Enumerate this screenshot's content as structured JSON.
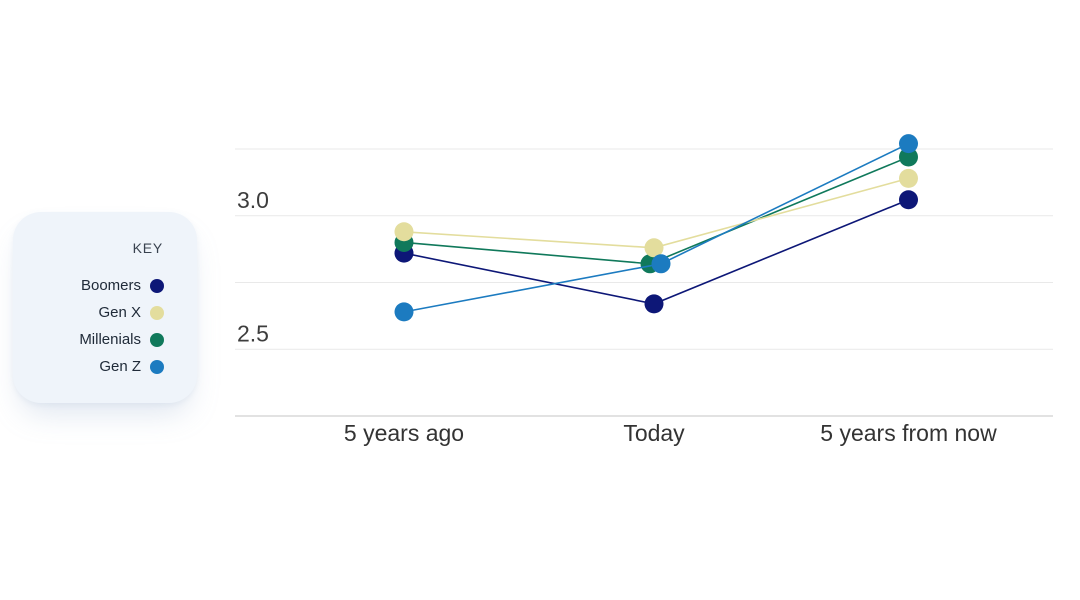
{
  "legend": {
    "title": "KEY",
    "items": [
      "Boomers",
      "Gen X",
      "Millenials",
      "Gen Z"
    ]
  },
  "chart_data": {
    "type": "line",
    "categories": [
      "5 years ago",
      "Today",
      "5 years from now"
    ],
    "series": [
      {
        "name": "Boomers",
        "color": "#0d1777",
        "values": [
          2.86,
          2.67,
          3.06
        ]
      },
      {
        "name": "Gen X",
        "color": "#e3dd9d",
        "values": [
          2.94,
          2.88,
          3.14
        ]
      },
      {
        "name": "Millenials",
        "color": "#10795b",
        "values": [
          2.9,
          2.82,
          3.22
        ]
      },
      {
        "name": "Gen Z",
        "color": "#1c7bc0",
        "values": [
          2.64,
          2.82,
          3.27
        ]
      }
    ],
    "title": "",
    "xlabel": "",
    "ylabel": "",
    "ylim": [
      2.25,
      3.35
    ],
    "gridlines": [
      2.25,
      2.5,
      2.75,
      3.0,
      3.25
    ],
    "yticks_labeled": [
      3.0,
      2.5
    ],
    "grid": true,
    "legend_position": "left",
    "marker": "circle"
  },
  "colors": {
    "background": "#ffffff",
    "gridline": "#e9e9e9",
    "axis_line": "#d8d8d8",
    "tick_text": "#3d3d3d",
    "category_text": "#333333",
    "legend_bg": "#eff4fa",
    "legend_text": "#202b39"
  }
}
